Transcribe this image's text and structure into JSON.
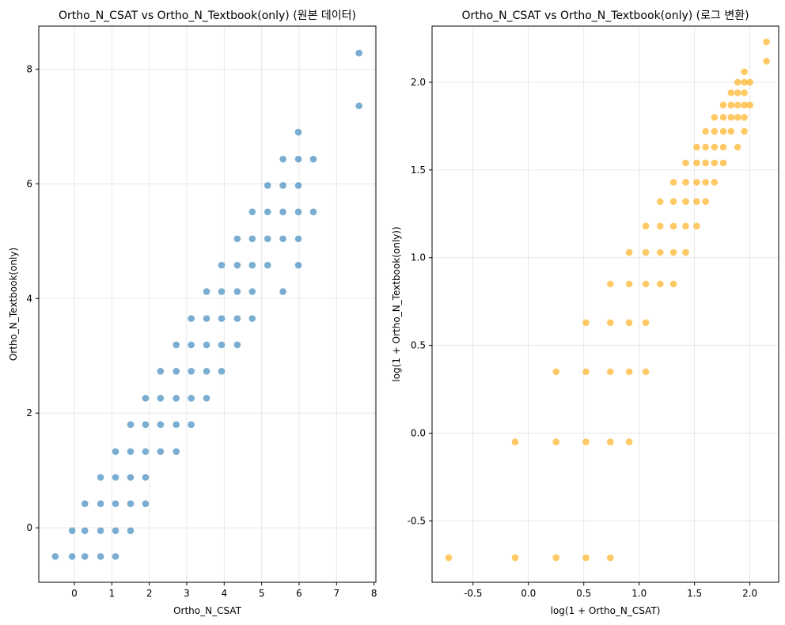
{
  "chart_data": [
    {
      "type": "scatter",
      "title": "Ortho_N_CSAT vs Ortho_N_Textbook(only) (원본 데이터)",
      "xlabel": "Ortho_N_CSAT",
      "ylabel": "Ortho_N_Textbook(only)",
      "xlim": [
        -0.95,
        8.05
      ],
      "ylim": [
        -0.95,
        8.75
      ],
      "xticks": [
        0,
        1,
        2,
        3,
        4,
        5,
        6,
        7,
        8
      ],
      "xticklabels": [
        "0",
        "1",
        "2",
        "3",
        "4",
        "5",
        "6",
        "7",
        "8"
      ],
      "yticks": [
        0,
        2,
        4,
        6,
        8
      ],
      "yticklabels": [
        "0",
        "2",
        "4",
        "6",
        "8"
      ],
      "grid": true,
      "color": "#1f77b4",
      "alpha": 0.6,
      "x_levels": [
        -0.51,
        -0.06,
        0.28,
        0.7,
        1.1,
        1.5,
        1.9,
        2.3,
        2.72,
        3.12,
        3.53,
        3.93,
        4.35,
        4.75,
        5.16,
        5.57,
        5.98,
        6.38,
        7.6
      ],
      "y_levels": [
        -0.5,
        -0.05,
        0.42,
        0.88,
        1.33,
        1.8,
        2.26,
        2.73,
        3.19,
        3.65,
        4.12,
        4.58,
        5.04,
        5.51,
        5.97,
        6.43,
        6.9,
        7.36,
        8.28
      ],
      "points": [
        [
          -0.51,
          -0.5
        ],
        [
          -0.06,
          -0.5
        ],
        [
          0.28,
          -0.5
        ],
        [
          0.7,
          -0.5
        ],
        [
          1.1,
          -0.5
        ],
        [
          -0.06,
          -0.05
        ],
        [
          0.28,
          -0.05
        ],
        [
          0.7,
          -0.05
        ],
        [
          1.1,
          -0.05
        ],
        [
          1.5,
          -0.05
        ],
        [
          0.28,
          0.42
        ],
        [
          0.7,
          0.42
        ],
        [
          1.1,
          0.42
        ],
        [
          1.5,
          0.42
        ],
        [
          1.9,
          0.42
        ],
        [
          0.7,
          0.88
        ],
        [
          1.1,
          0.88
        ],
        [
          1.5,
          0.88
        ],
        [
          1.9,
          0.88
        ],
        [
          1.1,
          1.33
        ],
        [
          1.5,
          1.33
        ],
        [
          1.9,
          1.33
        ],
        [
          2.3,
          1.33
        ],
        [
          2.72,
          1.33
        ],
        [
          1.5,
          1.8
        ],
        [
          1.9,
          1.8
        ],
        [
          2.3,
          1.8
        ],
        [
          2.72,
          1.8
        ],
        [
          3.12,
          1.8
        ],
        [
          1.9,
          2.26
        ],
        [
          2.3,
          2.26
        ],
        [
          2.72,
          2.26
        ],
        [
          3.12,
          2.26
        ],
        [
          3.53,
          2.26
        ],
        [
          2.3,
          2.73
        ],
        [
          2.72,
          2.73
        ],
        [
          3.12,
          2.73
        ],
        [
          3.53,
          2.73
        ],
        [
          3.93,
          2.73
        ],
        [
          2.72,
          3.19
        ],
        [
          3.12,
          3.19
        ],
        [
          3.53,
          3.19
        ],
        [
          3.93,
          3.19
        ],
        [
          4.35,
          3.19
        ],
        [
          3.12,
          3.65
        ],
        [
          3.53,
          3.65
        ],
        [
          3.93,
          3.65
        ],
        [
          4.35,
          3.65
        ],
        [
          4.75,
          3.65
        ],
        [
          3.53,
          4.12
        ],
        [
          3.93,
          4.12
        ],
        [
          4.35,
          4.12
        ],
        [
          4.75,
          4.12
        ],
        [
          5.57,
          4.12
        ],
        [
          3.93,
          4.58
        ],
        [
          4.35,
          4.58
        ],
        [
          4.75,
          4.58
        ],
        [
          5.16,
          4.58
        ],
        [
          5.98,
          4.58
        ],
        [
          4.35,
          5.04
        ],
        [
          4.75,
          5.04
        ],
        [
          5.16,
          5.04
        ],
        [
          5.57,
          5.04
        ],
        [
          5.98,
          5.04
        ],
        [
          4.75,
          5.51
        ],
        [
          5.16,
          5.51
        ],
        [
          5.57,
          5.51
        ],
        [
          5.98,
          5.51
        ],
        [
          6.38,
          5.51
        ],
        [
          5.16,
          5.97
        ],
        [
          5.57,
          5.97
        ],
        [
          5.98,
          5.97
        ],
        [
          5.57,
          6.43
        ],
        [
          5.98,
          6.43
        ],
        [
          6.38,
          6.43
        ],
        [
          5.98,
          6.9
        ],
        [
          7.6,
          7.36
        ],
        [
          7.6,
          8.28
        ]
      ]
    },
    {
      "type": "scatter",
      "title": "Ortho_N_CSAT vs Ortho_N_Textbook(only) (로그 변환)",
      "xlabel": "log(1 + Ortho_N_CSAT)",
      "ylabel": "log(1 + Ortho_N_Textbook(only))",
      "xlim": [
        -0.87,
        2.26
      ],
      "ylim": [
        -0.85,
        2.32
      ],
      "xticks": [
        -0.5,
        0.0,
        0.5,
        1.0,
        1.5,
        2.0
      ],
      "xticklabels": [
        "-0.5",
        "0.0",
        "0.5",
        "1.0",
        "1.5",
        "2.0"
      ],
      "yticks": [
        -0.5,
        0.0,
        0.5,
        1.0,
        1.5,
        2.0
      ],
      "yticklabels": [
        "-0.5",
        "0.0",
        "0.5",
        "1.0",
        "1.5",
        "2.0"
      ],
      "grid": true,
      "color": "#ffa500",
      "alpha": 0.6,
      "points": [
        [
          -0.72,
          -0.71
        ],
        [
          -0.12,
          -0.71
        ],
        [
          0.25,
          -0.71
        ],
        [
          0.52,
          -0.71
        ],
        [
          0.74,
          -0.71
        ],
        [
          -0.12,
          -0.05
        ],
        [
          0.25,
          -0.05
        ],
        [
          0.52,
          -0.05
        ],
        [
          0.74,
          -0.05
        ],
        [
          0.91,
          -0.05
        ],
        [
          0.25,
          0.35
        ],
        [
          0.52,
          0.35
        ],
        [
          0.74,
          0.35
        ],
        [
          0.91,
          0.35
        ],
        [
          1.06,
          0.35
        ],
        [
          0.52,
          0.63
        ],
        [
          0.74,
          0.63
        ],
        [
          0.91,
          0.63
        ],
        [
          1.06,
          0.63
        ],
        [
          0.74,
          0.85
        ],
        [
          0.91,
          0.85
        ],
        [
          1.06,
          0.85
        ],
        [
          1.19,
          0.85
        ],
        [
          1.31,
          0.85
        ],
        [
          0.91,
          1.03
        ],
        [
          1.06,
          1.03
        ],
        [
          1.19,
          1.03
        ],
        [
          1.31,
          1.03
        ],
        [
          1.42,
          1.03
        ],
        [
          1.06,
          1.18
        ],
        [
          1.19,
          1.18
        ],
        [
          1.31,
          1.18
        ],
        [
          1.42,
          1.18
        ],
        [
          1.52,
          1.18
        ],
        [
          1.19,
          1.32
        ],
        [
          1.31,
          1.32
        ],
        [
          1.42,
          1.32
        ],
        [
          1.52,
          1.32
        ],
        [
          1.6,
          1.32
        ],
        [
          1.31,
          1.43
        ],
        [
          1.42,
          1.43
        ],
        [
          1.52,
          1.43
        ],
        [
          1.6,
          1.43
        ],
        [
          1.68,
          1.43
        ],
        [
          1.42,
          1.54
        ],
        [
          1.52,
          1.54
        ],
        [
          1.6,
          1.54
        ],
        [
          1.68,
          1.54
        ],
        [
          1.76,
          1.54
        ],
        [
          1.52,
          1.63
        ],
        [
          1.6,
          1.63
        ],
        [
          1.68,
          1.63
        ],
        [
          1.76,
          1.63
        ],
        [
          1.89,
          1.63
        ],
        [
          1.6,
          1.72
        ],
        [
          1.68,
          1.72
        ],
        [
          1.76,
          1.72
        ],
        [
          1.83,
          1.72
        ],
        [
          1.95,
          1.72
        ],
        [
          1.68,
          1.8
        ],
        [
          1.76,
          1.8
        ],
        [
          1.83,
          1.8
        ],
        [
          1.89,
          1.8
        ],
        [
          1.95,
          1.8
        ],
        [
          1.76,
          1.87
        ],
        [
          1.83,
          1.87
        ],
        [
          1.89,
          1.87
        ],
        [
          1.95,
          1.87
        ],
        [
          2.0,
          1.87
        ],
        [
          1.83,
          1.94
        ],
        [
          1.89,
          1.94
        ],
        [
          1.95,
          1.94
        ],
        [
          1.89,
          2.0
        ],
        [
          1.95,
          2.0
        ],
        [
          2.0,
          2.0
        ],
        [
          1.95,
          2.06
        ],
        [
          2.15,
          2.12
        ],
        [
          2.15,
          2.23
        ]
      ]
    }
  ]
}
